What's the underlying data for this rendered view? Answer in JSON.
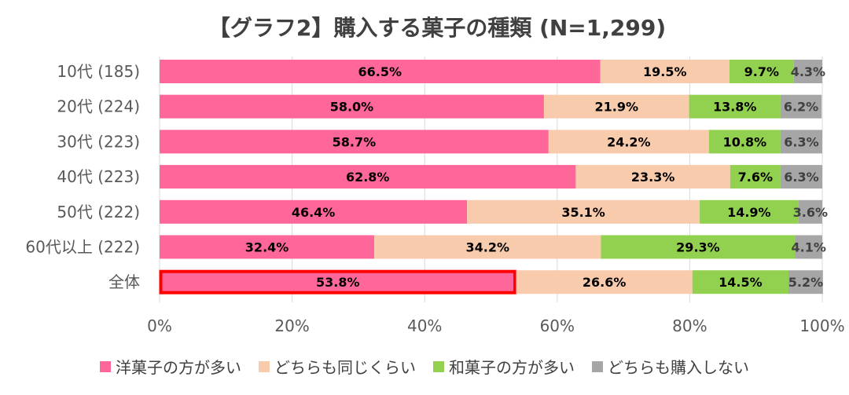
{
  "chart_data": {
    "type": "bar",
    "orientation": "horizontal",
    "stacked": true,
    "title": "【グラフ2】購入する菓子の種類 (N=1,299)",
    "categories": [
      "10代 (185)",
      "20代 (224)",
      "30代 (223)",
      "40代 (223)",
      "50代 (222)",
      "60代以上 (222)",
      "全体"
    ],
    "series": [
      {
        "name": "洋菓子の方が多い",
        "color": "#FF6699",
        "values": [
          66.5,
          58.0,
          58.7,
          62.8,
          46.4,
          32.4,
          53.8
        ],
        "labels": [
          "66.5%",
          "58.0%",
          "58.7%",
          "62.8%",
          "46.4%",
          "32.4%",
          "53.8%"
        ]
      },
      {
        "name": "どちらも同じくらい",
        "color": "#F8CBAD",
        "values": [
          19.5,
          21.9,
          24.2,
          23.3,
          35.1,
          34.2,
          26.6
        ],
        "labels": [
          "19.5%",
          "21.9%",
          "24.2%",
          "23.3%",
          "35.1%",
          "34.2%",
          "26.6%"
        ]
      },
      {
        "name": "和菓子の方が多い",
        "color": "#92D050",
        "values": [
          9.7,
          13.8,
          10.8,
          7.6,
          14.9,
          29.3,
          14.5
        ],
        "labels": [
          "9.7%",
          "13.8%",
          "10.8%",
          "7.6%",
          "14.9%",
          "29.3%",
          "14.5%"
        ]
      },
      {
        "name": "どちらも購入しない",
        "color": "#A6A6A6",
        "values": [
          4.3,
          6.2,
          6.3,
          6.3,
          3.6,
          4.1,
          5.2
        ],
        "labels": [
          "4.3%",
          "6.2%",
          "6.3%",
          "6.3%",
          "3.6%",
          "4.1%",
          "5.2%"
        ]
      }
    ],
    "xlim": [
      0,
      100
    ],
    "xticks": [
      "0%",
      "20%",
      "40%",
      "60%",
      "80%",
      "100%"
    ],
    "grid": true,
    "legend_position": "bottom",
    "highlight": {
      "category": "全体",
      "series": "洋菓子の方が多い",
      "color": "#FF0000"
    }
  }
}
